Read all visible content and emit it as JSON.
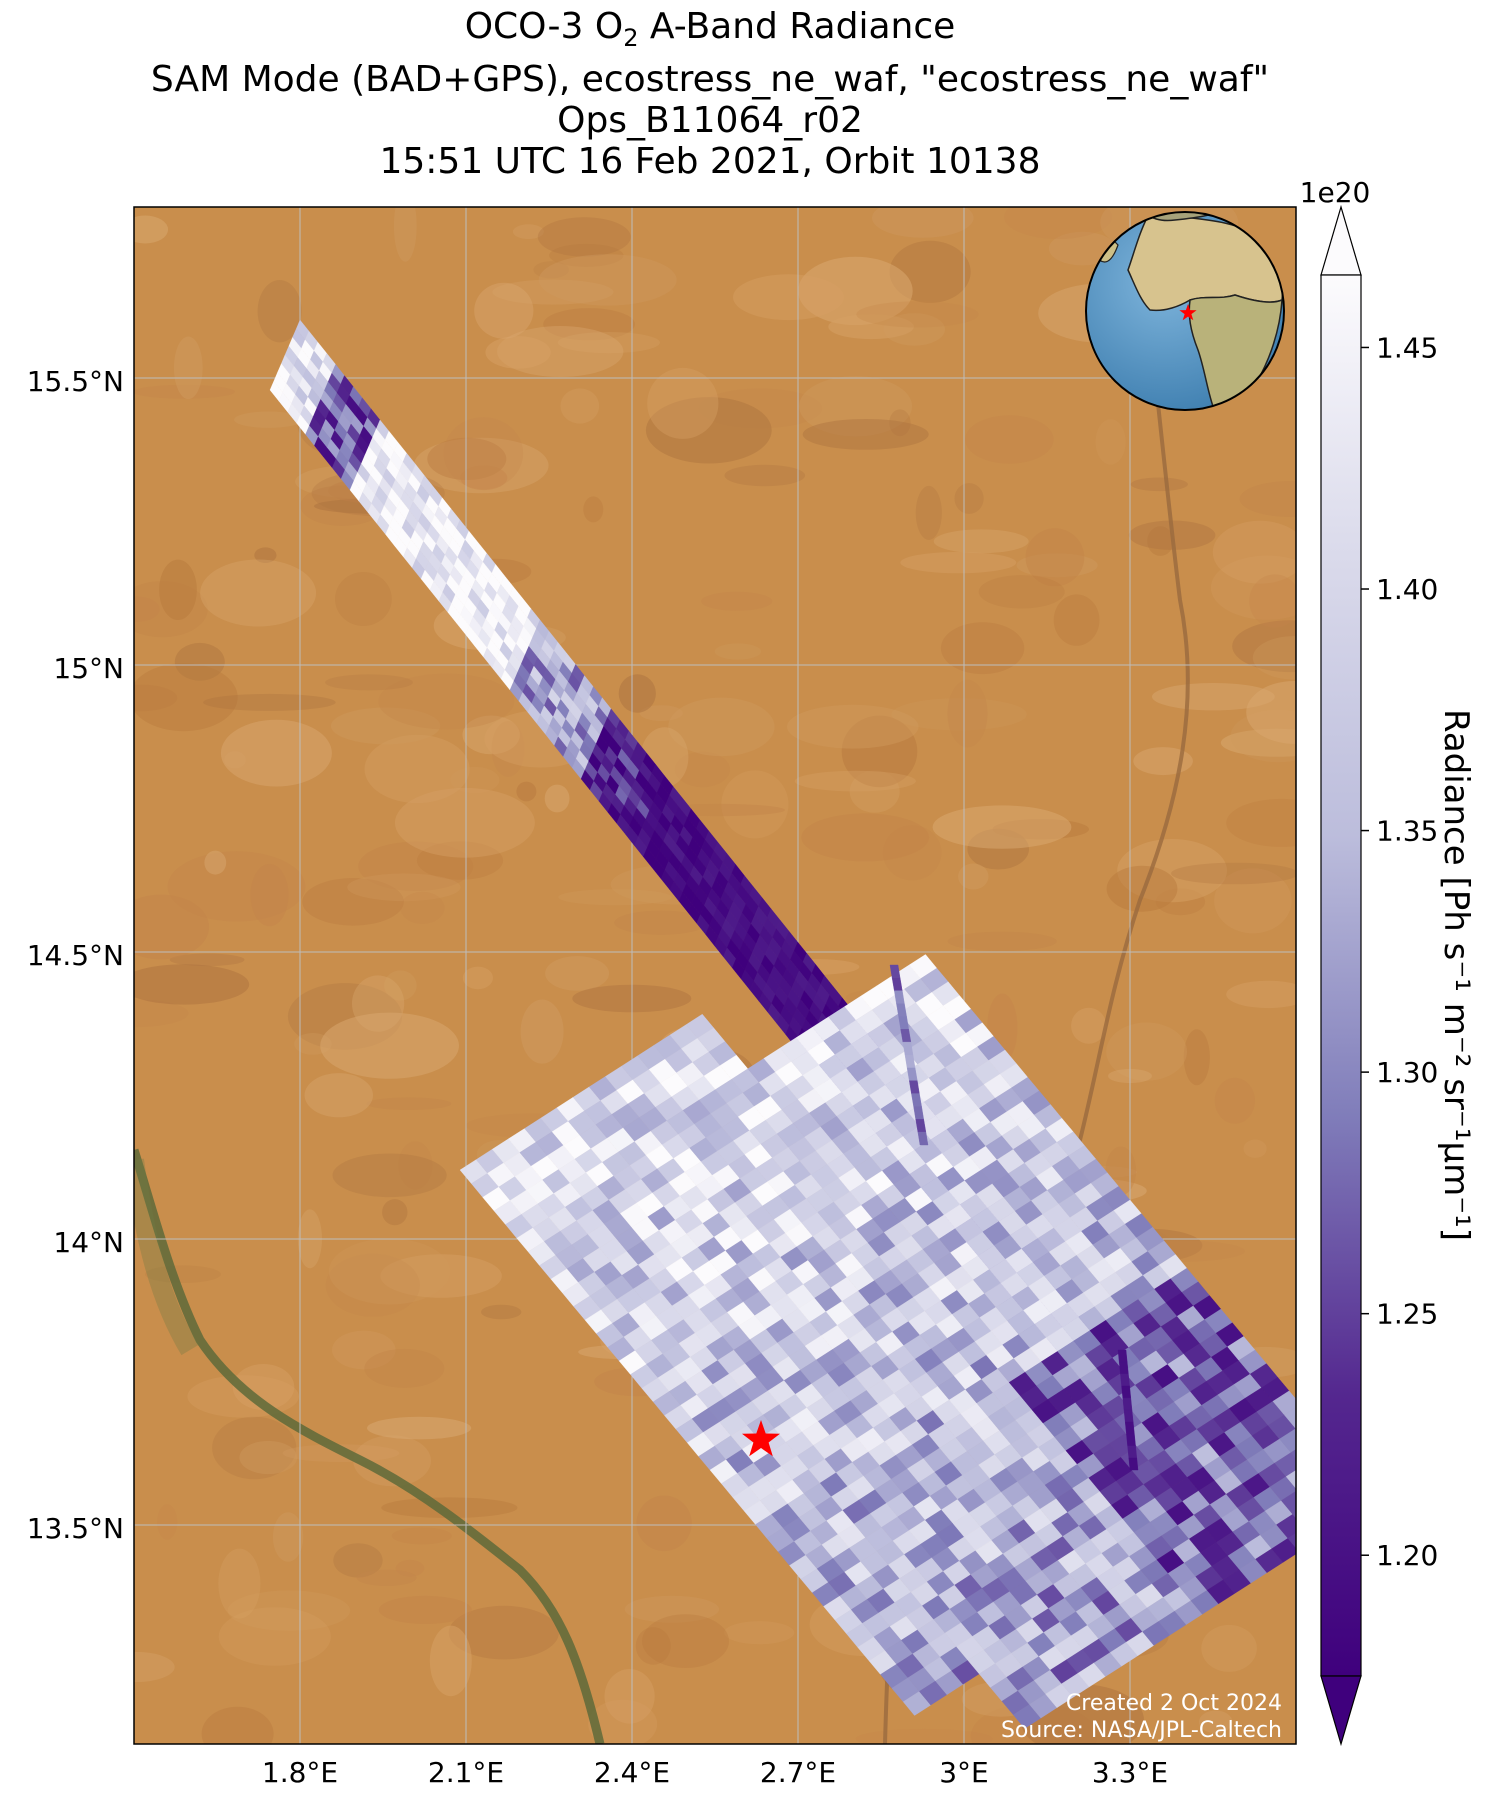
{
  "title": {
    "line1_prefix": "OCO-3 O",
    "line1_sub": "2",
    "line1_suffix": " A-Band Radiance",
    "line2": "SAM Mode (BAD+GPS), ecostress_ne_waf, \"ecostress_ne_waf\"",
    "line3": "Ops_B11064_r02",
    "line4": "15:51 UTC 16 Feb 2021, Orbit 10138"
  },
  "map": {
    "lon_range": [
      1.55,
      3.3
    ],
    "lat_range": [
      13.1,
      15.8
    ],
    "x_ticks": [
      "1.8°E",
      "2.1°E",
      "2.4°E",
      "2.7°E",
      "3°E",
      "3.3°E"
    ],
    "y_ticks": [
      "15.5°N",
      "15°N",
      "14.5°N",
      "14°N",
      "13.5°N"
    ],
    "target_marker": "red-star",
    "credit_line1": "Created 2 Oct 2024",
    "credit_line2": "Source: NASA/JPL-Caltech"
  },
  "colorbar": {
    "label": "Radiance [Ph s⁻¹ m⁻² sr⁻¹μm⁻¹]",
    "scale_label": "1e20",
    "ticks": [
      "1.20",
      "1.25",
      "1.30",
      "1.35",
      "1.40",
      "1.45"
    ],
    "colormap": "Purples_r",
    "low_color": "#3f007d",
    "high_color": "#fcfbfd"
  },
  "colors": {
    "land": "#c98e4c",
    "river": "#5e6a3a",
    "globe_ocean": "#5f9ecb",
    "star": "#ff0000"
  }
}
